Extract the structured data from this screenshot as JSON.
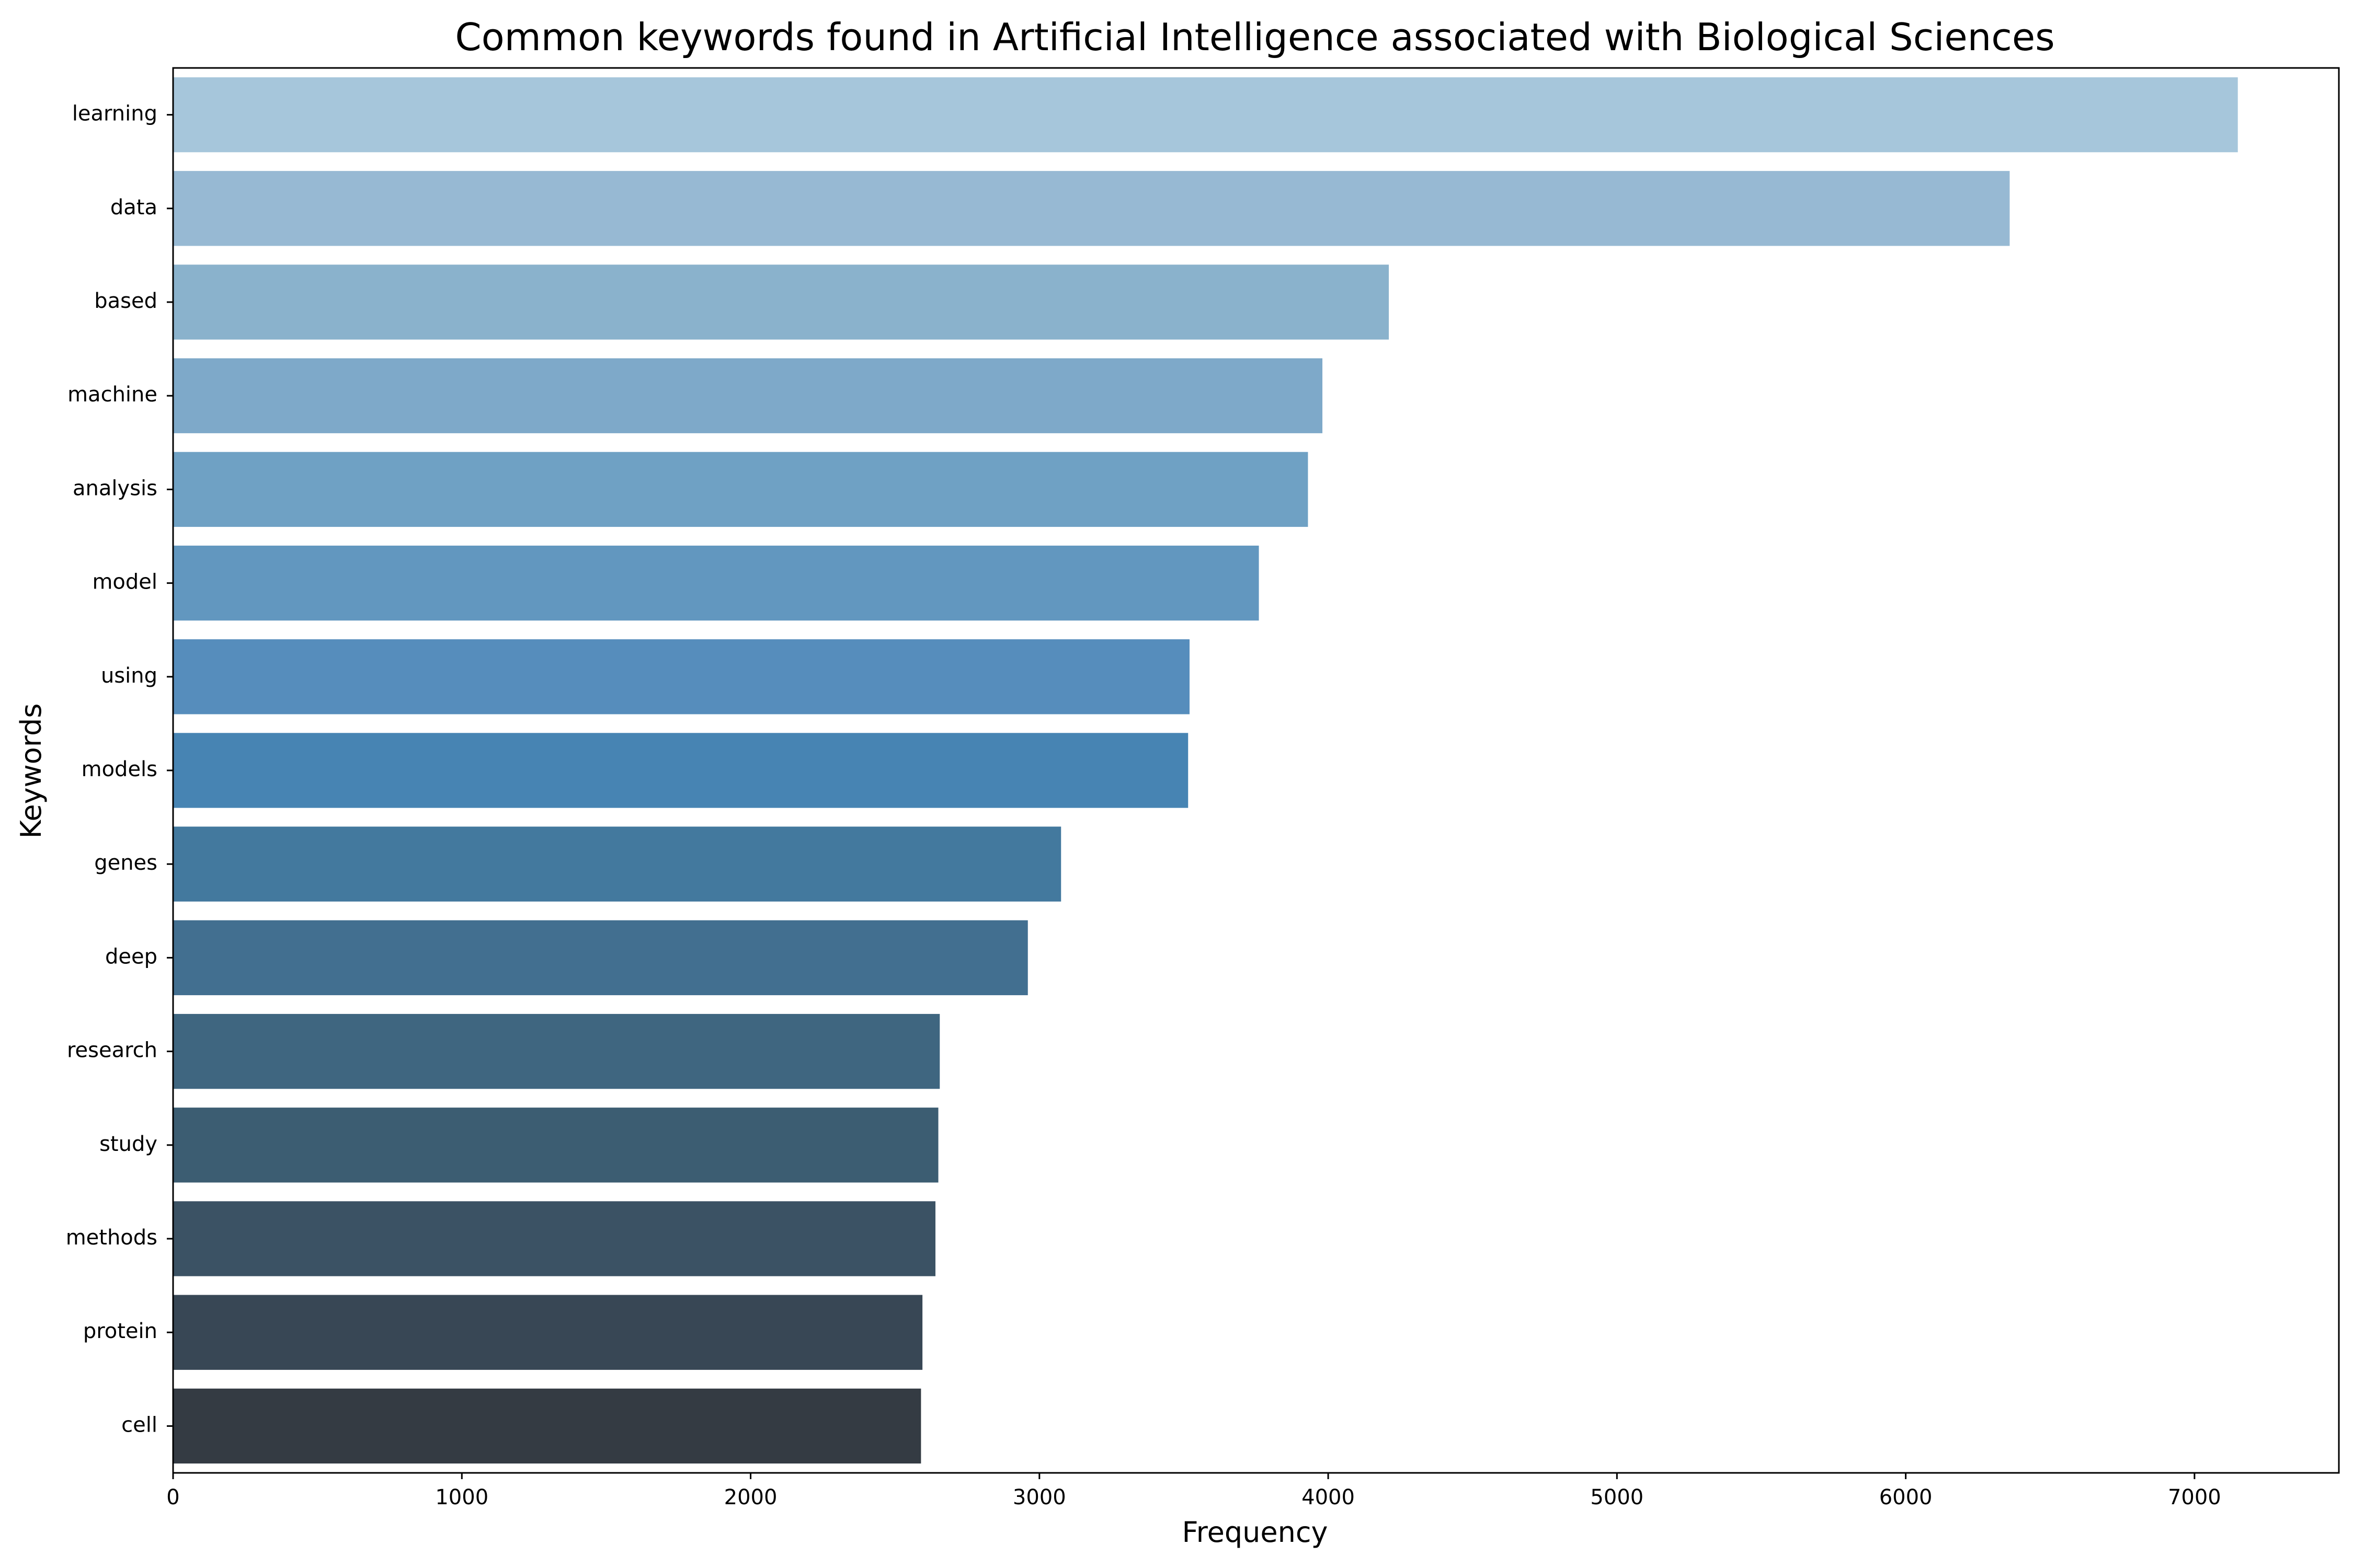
{
  "chart_data": {
    "type": "bar",
    "orientation": "horizontal",
    "title": "Common keywords found in Artificial Intelligence associated with Biological Sciences",
    "xlabel": "Frequency",
    "ylabel": "Keywords",
    "xlim": [
      0,
      7500
    ],
    "xticks": [
      0,
      1000,
      2000,
      3000,
      4000,
      5000,
      6000,
      7000
    ],
    "grid": false,
    "categories": [
      "learning",
      "data",
      "based",
      "machine",
      "analysis",
      "model",
      "using",
      "models",
      "genes",
      "deep",
      "research",
      "study",
      "methods",
      "protein",
      "cell"
    ],
    "values": [
      7150,
      6360,
      4210,
      3980,
      3930,
      3760,
      3520,
      3515,
      3075,
      2960,
      2655,
      2650,
      2640,
      2595,
      2590
    ],
    "colors": [
      "#a6c6db",
      "#97b9d3",
      "#8ab2cc",
      "#7ea9c9",
      "#6fa1c4",
      "#6297bf",
      "#568dbc",
      "#4784b3",
      "#43799e",
      "#426f90",
      "#3f6680",
      "#3c5d72",
      "#3b5264",
      "#384755",
      "#343b43"
    ]
  }
}
